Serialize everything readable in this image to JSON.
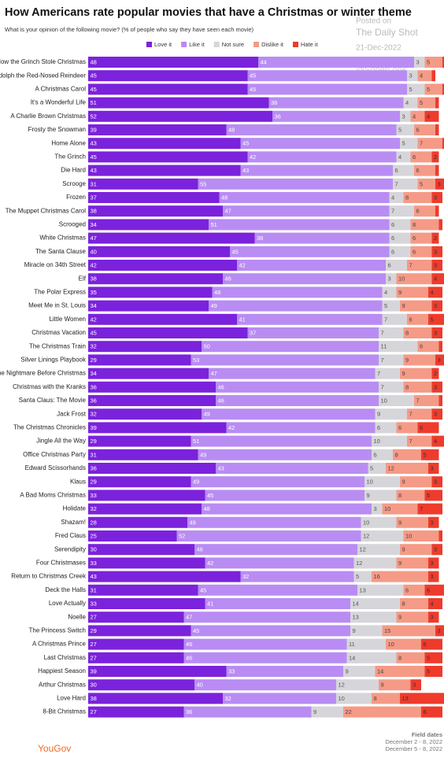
{
  "chart_data": {
    "type": "stacked-bar",
    "title": "How Americans rate popular movies that have a Christmas or winter theme",
    "subtitle": "What is your opinion of the following movie? (% of people who say they have seen each movie)",
    "watermark": [
      "Posted on",
      "The Daily Shot",
      "21-Dec-2022",
      "@SoberLook"
    ],
    "source": "YouGov",
    "field_dates": [
      "Field dates",
      "December 2 - 8, 2022",
      "December 5 - 8, 2022"
    ],
    "xlim": [
      0,
      100
    ],
    "categories": [
      "How the Grinch Stole Christmas",
      "Rudolph the Red-Nosed Reindeer",
      "A Christmas Carol",
      "It's a Wonderful Life",
      "A Charlie Brown Christmas",
      "Frosty the Snowman",
      "Home Alone",
      "The Grinch",
      "Die Hard",
      "Scrooge",
      "Frozen",
      "The Muppet Christmas Carol",
      "Scrooged",
      "White Christmas",
      "The Santa Clause",
      "Miracle on 34th Street",
      "Elf",
      "The Polar Express",
      "Meet Me in St. Louis",
      "Little Women",
      "Christmas Vacation",
      "The Christmas Train",
      "Silver Linings Playbook",
      "The Nightmare Before Christmas",
      "Christmas with the Kranks",
      "Santa Claus: The Movie",
      "Jack Frost",
      "The Christmas Chronicles",
      "Jingle All the Way",
      "Office Christmas Party",
      "Edward Scissorhands",
      "Klaus",
      "A Bad Moms Christmas",
      "Holidate",
      "Shazam!",
      "Fred Claus",
      "Serendipity",
      "Four Christmases",
      "Return to Christmas Creek",
      "Deck the Halls",
      "Love Actually",
      "Noelle",
      "The Princess Switch",
      "A Christmas Prince",
      "Last Christmas",
      "Happiest Season",
      "Arthur Christmas",
      "Love Hard",
      "8-Bit Christmas"
    ],
    "series": [
      {
        "name": "Love it",
        "color": "#7b22dc",
        "label_color": "#ffffff",
        "values": [
          48,
          45,
          45,
          51,
          52,
          39,
          43,
          45,
          43,
          31,
          37,
          38,
          34,
          47,
          40,
          42,
          38,
          35,
          34,
          42,
          45,
          32,
          29,
          34,
          36,
          36,
          32,
          39,
          29,
          31,
          36,
          29,
          33,
          32,
          28,
          25,
          30,
          33,
          43,
          31,
          33,
          27,
          29,
          27,
          27,
          39,
          30,
          38,
          27
        ]
      },
      {
        "name": "Like it",
        "color": "#b98cf3",
        "label_color": "#ffffff",
        "values": [
          44,
          45,
          45,
          38,
          36,
          48,
          45,
          42,
          43,
          55,
          48,
          47,
          51,
          38,
          45,
          42,
          46,
          48,
          49,
          41,
          37,
          50,
          53,
          47,
          46,
          46,
          49,
          42,
          51,
          49,
          43,
          49,
          45,
          48,
          49,
          52,
          46,
          42,
          32,
          45,
          41,
          47,
          45,
          46,
          46,
          33,
          40,
          32,
          36
        ]
      },
      {
        "name": "Not sure",
        "color": "#d6d6da",
        "label_color": "#555555",
        "values": [
          3,
          3,
          5,
          4,
          3,
          5,
          5,
          4,
          6,
          7,
          4,
          7,
          6,
          6,
          6,
          6,
          3,
          4,
          5,
          7,
          7,
          11,
          7,
          7,
          7,
          10,
          9,
          6,
          10,
          6,
          5,
          10,
          9,
          3,
          10,
          12,
          12,
          12,
          5,
          13,
          14,
          13,
          9,
          11,
          14,
          9,
          12,
          10,
          9
        ]
      },
      {
        "name": "Dislike it",
        "color": "#f59a86",
        "label_color": "#444444",
        "values": [
          5,
          4,
          5,
          5,
          4,
          6,
          7,
          6,
          6,
          5,
          8,
          6,
          8,
          6,
          6,
          7,
          10,
          9,
          9,
          6,
          8,
          6,
          9,
          9,
          8,
          7,
          7,
          6,
          7,
          8,
          12,
          9,
          8,
          10,
          9,
          10,
          9,
          9,
          16,
          6,
          8,
          9,
          15,
          10,
          8,
          14,
          9,
          8,
          22
        ]
      },
      {
        "name": "Hate it",
        "color": "#ee3b2c",
        "label_color": "#333333",
        "values": [
          1,
          1,
          1,
          1,
          4,
          1,
          1,
          2,
          1,
          3,
          3,
          1,
          1,
          2,
          3,
          3,
          4,
          4,
          3,
          5,
          3,
          1,
          3,
          2,
          3,
          1,
          3,
          6,
          4,
          5,
          3,
          3,
          5,
          7,
          3,
          1,
          3,
          3,
          3,
          6,
          4,
          3,
          3,
          6,
          5,
          5,
          3,
          13,
          6
        ]
      }
    ]
  }
}
